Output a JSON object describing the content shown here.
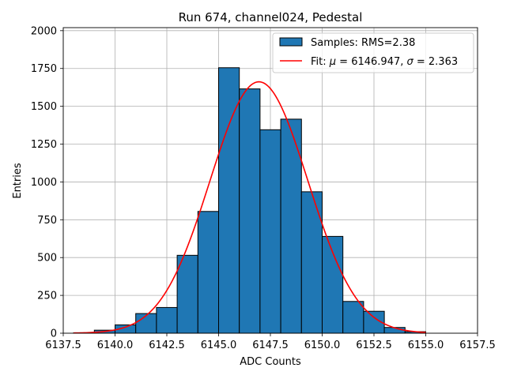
{
  "chart_data": {
    "type": "bar",
    "title": "Run 674, channel024, Pedestal",
    "xlabel": "ADC Counts",
    "ylabel": "Entries",
    "xlim": [
      6137.5,
      6157.5
    ],
    "ylim": [
      0,
      2020
    ],
    "xticks": [
      6137.5,
      6140.0,
      6142.5,
      6145.0,
      6147.5,
      6150.0,
      6152.5,
      6155.0,
      6157.5
    ],
    "xtick_labels": [
      "6137.5",
      "6140.0",
      "6142.5",
      "6145.0",
      "6147.5",
      "6150.0",
      "6152.5",
      "6155.0",
      "6157.5"
    ],
    "yticks": [
      0,
      250,
      500,
      750,
      1000,
      1250,
      1500,
      1750,
      2000
    ],
    "ytick_labels": [
      "0",
      "250",
      "500",
      "750",
      "1000",
      "1250",
      "1500",
      "1750",
      "2000"
    ],
    "grid": true,
    "legend_position": "top-right",
    "histogram": {
      "name": "Samples: RMS=2.38",
      "color": "#1f77b4",
      "edgecolor": "#000000",
      "bin_width": 1,
      "bin_starts": [
        6138,
        6139,
        6140,
        6141,
        6142,
        6143,
        6144,
        6145,
        6146,
        6147,
        6148,
        6149,
        6150,
        6151,
        6152,
        6153,
        6154
      ],
      "values": [
        3,
        20,
        55,
        130,
        170,
        515,
        805,
        1755,
        1615,
        1345,
        1415,
        935,
        640,
        210,
        145,
        38,
        10
      ]
    },
    "fit": {
      "name": "Fit: μ = 6146.947, σ = 2.363",
      "legend_prefix": "Fit: ",
      "legend_mu_symbol": "μ",
      "legend_mu_value": " = 6146.947, ",
      "legend_sigma_symbol": "σ",
      "legend_sigma_value": " = 2.363",
      "color": "#ff0000",
      "mu": 6146.947,
      "sigma": 2.363,
      "amplitude": 1662,
      "x_range": [
        6138,
        6155
      ]
    }
  }
}
